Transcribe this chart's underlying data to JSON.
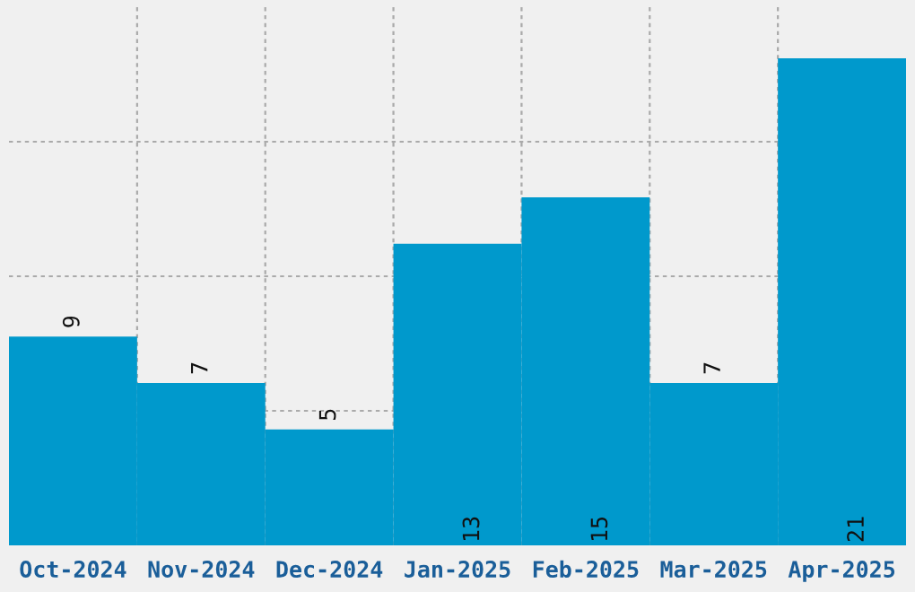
{
  "chart_data": {
    "type": "bar",
    "categories": [
      "Oct-2024",
      "Nov-2024",
      "Dec-2024",
      "Jan-2025",
      "Feb-2025",
      "Mar-2025",
      "Apr-2025"
    ],
    "values": [
      9,
      7,
      5,
      13,
      15,
      7,
      21
    ],
    "color": "#0099cc",
    "ylim": [
      0,
      23.2
    ],
    "yticks": [
      {
        "value": 5.8,
        "label": null
      },
      {
        "value": 11.6,
        "label": null
      },
      {
        "value": 17.4,
        "label": null
      }
    ],
    "tick_labels": "x",
    "grid": true,
    "data_labels": true
  }
}
